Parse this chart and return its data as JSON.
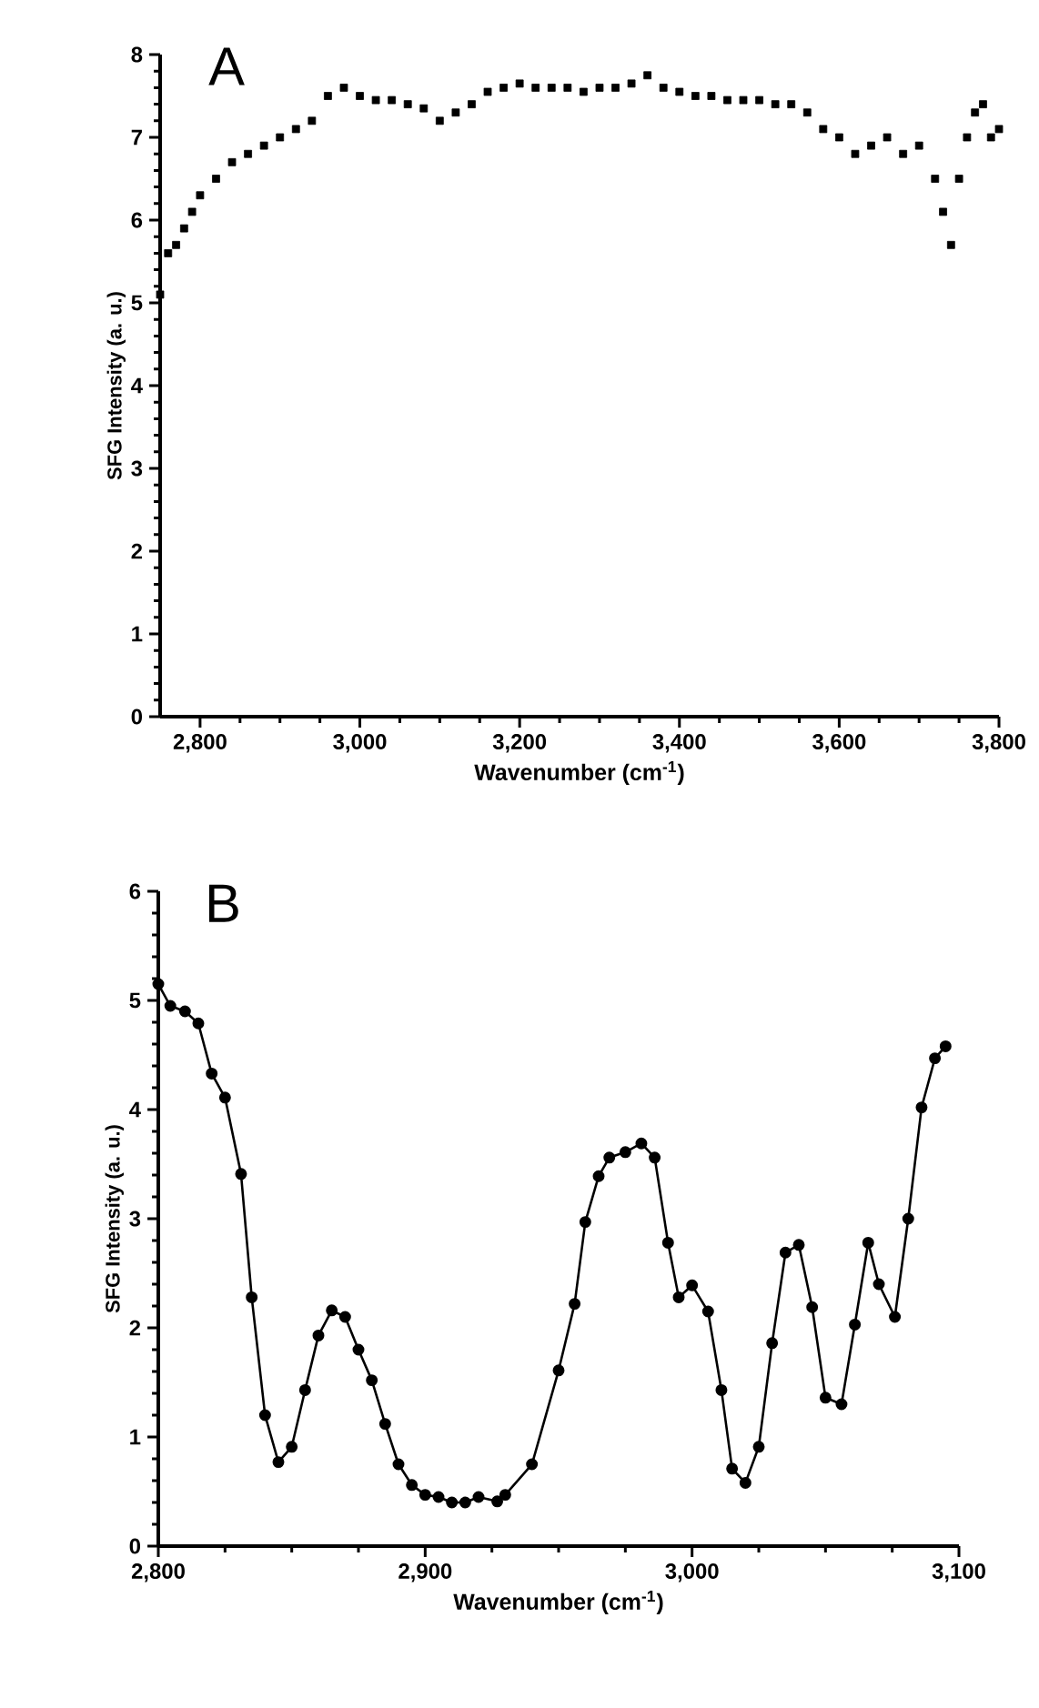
{
  "chart_data": [
    {
      "type": "scatter",
      "xlabel": "Wavenumber (cm$^{-1}$)",
      "ylabel": "SFG Intensity (a. u.)",
      "annotations": [
        "A"
      ],
      "marker": "square",
      "x": [
        2750,
        2760,
        2770,
        2780,
        2790,
        2800,
        2820,
        2840,
        2860,
        2880,
        2900,
        2920,
        2940,
        2960,
        2980,
        3000,
        3020,
        3040,
        3060,
        3080,
        3100,
        3120,
        3140,
        3160,
        3180,
        3200,
        3220,
        3240,
        3260,
        3280,
        3300,
        3320,
        3340,
        3360,
        3380,
        3400,
        3420,
        3440,
        3460,
        3480,
        3500,
        3520,
        3540,
        3560,
        3580,
        3600,
        3620,
        3640,
        3660,
        3680,
        3700,
        3720,
        3730,
        3740,
        3750,
        3760,
        3770,
        3780,
        3790,
        3800
      ],
      "series": [
        {
          "color": "#000000",
          "values": [
            5.1,
            5.6,
            5.7,
            5.9,
            6.1,
            6.3,
            6.5,
            6.7,
            6.8,
            6.9,
            7.0,
            7.1,
            7.2,
            7.5,
            7.6,
            7.5,
            7.45,
            7.45,
            7.4,
            7.35,
            7.2,
            7.3,
            7.4,
            7.55,
            7.6,
            7.65,
            7.6,
            7.6,
            7.6,
            7.55,
            7.6,
            7.6,
            7.65,
            7.75,
            7.6,
            7.55,
            7.5,
            7.5,
            7.45,
            7.45,
            7.45,
            7.4,
            7.4,
            7.3,
            7.1,
            7.0,
            6.8,
            6.9,
            7.0,
            6.8,
            6.9,
            6.5,
            6.1,
            5.7,
            6.5,
            7.0,
            7.3,
            7.4,
            7.0,
            7.1
          ]
        }
      ],
      "xlim": [
        2750,
        3800
      ],
      "ylim": [
        0,
        8
      ],
      "xticks": [
        {
          "value": 2800,
          "label": "2,800"
        },
        {
          "value": 3000,
          "label": "3,000"
        },
        {
          "value": 3200,
          "label": "3,200"
        },
        {
          "value": 3400,
          "label": "3,400"
        },
        {
          "value": 3600,
          "label": "3,600"
        },
        {
          "value": 3800,
          "label": "3,800"
        }
      ],
      "yticks": [
        0,
        1,
        2,
        3,
        4,
        5,
        6,
        7,
        8
      ]
    },
    {
      "type": "line",
      "xlabel": "Wavenumber (cm$^{-1}$)",
      "ylabel": "SFG Intensity (a. u.)",
      "annotations": [
        "B"
      ],
      "marker": "circle",
      "line_style": "solid",
      "x": [
        2800,
        2804.5,
        2810,
        2815,
        2820,
        2825,
        2831,
        2835,
        2840,
        2845,
        2850,
        2855,
        2860,
        2865,
        2870,
        2875,
        2880,
        2885,
        2890,
        2895,
        2900,
        2905,
        2910,
        2915,
        2920,
        2927,
        2930,
        2940,
        2950,
        2956,
        2960,
        2965,
        2969,
        2975,
        2981,
        2986,
        2991,
        2995,
        3000,
        3006,
        3011,
        3015,
        3020,
        3025,
        3030,
        3035,
        3040,
        3045,
        3050,
        3056,
        3061,
        3066,
        3070,
        3076,
        3081,
        3086,
        3091,
        3095
      ],
      "series": [
        {
          "color": "#000000",
          "values": [
            5.15,
            4.95,
            4.9,
            4.79,
            4.33,
            4.11,
            3.41,
            2.28,
            1.2,
            0.77,
            0.91,
            1.43,
            1.93,
            2.16,
            2.1,
            1.8,
            1.52,
            1.12,
            0.75,
            0.56,
            0.47,
            0.45,
            0.4,
            0.4,
            0.45,
            0.41,
            0.47,
            0.75,
            1.61,
            2.22,
            2.97,
            3.39,
            3.56,
            3.61,
            3.69,
            3.56,
            2.78,
            2.28,
            2.39,
            2.15,
            1.43,
            0.71,
            0.58,
            0.91,
            1.86,
            2.69,
            2.76,
            2.19,
            1.36,
            1.3,
            2.03,
            2.78,
            2.4,
            2.1,
            3.0,
            4.02,
            4.47,
            4.58
          ]
        }
      ],
      "xlim": [
        2800,
        3100
      ],
      "ylim": [
        0,
        6
      ],
      "xticks": [
        {
          "value": 2800,
          "label": "2,800"
        },
        {
          "value": 2900,
          "label": "2,900"
        },
        {
          "value": 3000,
          "label": "3,000"
        },
        {
          "value": 3100,
          "label": "3,100"
        }
      ],
      "yticks": [
        0,
        1,
        2,
        3,
        4,
        5,
        6
      ]
    }
  ]
}
